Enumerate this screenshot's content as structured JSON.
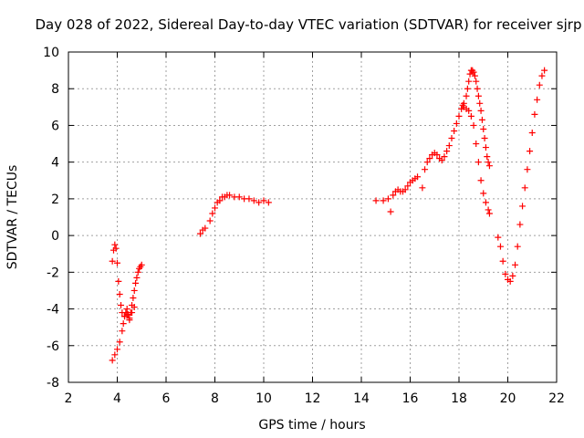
{
  "chart_data": {
    "type": "scatter",
    "title": "Day 028 of 2022, Sidereal Day-to-day VTEC variation (SDTVAR) for receiver sjrp",
    "xlabel": "GPS time / hours",
    "ylabel": "SDTVAR / TECUs",
    "xlim": [
      2,
      22
    ],
    "ylim": [
      -8,
      10
    ],
    "x_ticks": [
      2,
      4,
      6,
      8,
      10,
      12,
      14,
      16,
      18,
      20,
      22
    ],
    "y_ticks": [
      -8,
      -6,
      -4,
      -2,
      0,
      2,
      4,
      6,
      8,
      10
    ],
    "grid": true,
    "marker": "+",
    "marker_color": "#ff0000",
    "series": [
      {
        "name": "sjrp",
        "x": [
          3.8,
          3.9,
          4.0,
          4.1,
          4.2,
          4.25,
          4.3,
          4.35,
          4.4,
          4.45,
          4.5,
          4.55,
          4.6,
          4.65,
          4.7,
          4.75,
          4.8,
          4.85,
          4.9,
          4.95,
          5.0,
          3.8,
          3.85,
          3.9,
          3.95,
          4.0,
          4.05,
          4.1,
          4.15,
          4.2,
          4.3,
          4.4,
          4.5,
          4.6,
          4.7,
          7.4,
          7.5,
          7.6,
          7.8,
          7.9,
          8.0,
          8.1,
          8.2,
          8.3,
          8.4,
          8.5,
          8.6,
          8.8,
          9.0,
          9.2,
          9.4,
          9.6,
          9.8,
          10.0,
          10.2,
          14.6,
          14.9,
          15.1,
          15.2,
          15.3,
          15.4,
          15.5,
          15.6,
          15.7,
          15.8,
          15.9,
          16.0,
          16.1,
          16.2,
          16.3,
          16.5,
          16.6,
          16.7,
          16.8,
          16.9,
          17.0,
          17.1,
          17.2,
          17.3,
          17.4,
          17.5,
          17.6,
          17.7,
          17.8,
          17.9,
          18.0,
          18.1,
          18.15,
          18.2,
          18.3,
          18.4,
          18.5,
          18.6,
          18.7,
          18.8,
          18.9,
          19.0,
          19.1,
          19.2,
          19.25,
          18.2,
          18.3,
          18.35,
          18.4,
          18.45,
          18.5,
          18.55,
          18.6,
          18.65,
          18.7,
          18.75,
          18.8,
          18.85,
          18.9,
          18.95,
          19.0,
          19.05,
          19.1,
          19.15,
          19.2,
          19.25,
          19.6,
          19.7,
          19.8,
          19.9,
          20.0,
          20.1,
          20.2,
          20.3,
          20.4,
          20.5,
          20.6,
          20.7,
          20.8,
          20.9,
          21.0,
          21.1,
          21.2,
          21.3,
          21.4,
          21.5
        ],
        "y": [
          -6.8,
          -6.5,
          -6.2,
          -5.8,
          -5.2,
          -4.8,
          -4.4,
          -4.2,
          -4.0,
          -4.3,
          -4.6,
          -4.2,
          -3.8,
          -3.4,
          -3.0,
          -2.6,
          -2.3,
          -2.0,
          -1.8,
          -1.7,
          -1.6,
          -1.4,
          -0.8,
          -0.5,
          -0.7,
          -1.5,
          -2.5,
          -3.2,
          -3.8,
          -4.2,
          -4.4,
          -4.3,
          -4.5,
          -4.2,
          -3.9,
          0.1,
          0.3,
          0.4,
          0.8,
          1.2,
          1.5,
          1.8,
          1.9,
          2.1,
          2.1,
          2.2,
          2.2,
          2.1,
          2.1,
          2.0,
          2.0,
          1.9,
          1.8,
          1.9,
          1.8,
          1.9,
          1.9,
          2.0,
          1.3,
          2.2,
          2.4,
          2.5,
          2.4,
          2.4,
          2.5,
          2.7,
          2.9,
          3.0,
          3.1,
          3.2,
          2.6,
          3.6,
          4.0,
          4.2,
          4.4,
          4.5,
          4.4,
          4.2,
          4.1,
          4.3,
          4.6,
          4.9,
          5.3,
          5.7,
          6.1,
          6.5,
          6.9,
          7.1,
          7.0,
          6.9,
          6.8,
          6.5,
          6.0,
          5.0,
          4.0,
          3.0,
          2.3,
          1.8,
          1.4,
          1.2,
          7.2,
          7.6,
          8.0,
          8.4,
          8.8,
          9.0,
          9.0,
          8.9,
          8.7,
          8.4,
          8.0,
          7.6,
          7.2,
          6.8,
          6.3,
          5.8,
          5.3,
          4.8,
          4.3,
          4.0,
          3.8,
          -0.1,
          -0.6,
          -1.4,
          -2.1,
          -2.4,
          -2.5,
          -2.2,
          -1.6,
          -0.6,
          0.6,
          1.6,
          2.6,
          3.6,
          4.6,
          5.6,
          6.6,
          7.4,
          8.2,
          8.7,
          9.0
        ]
      }
    ]
  }
}
